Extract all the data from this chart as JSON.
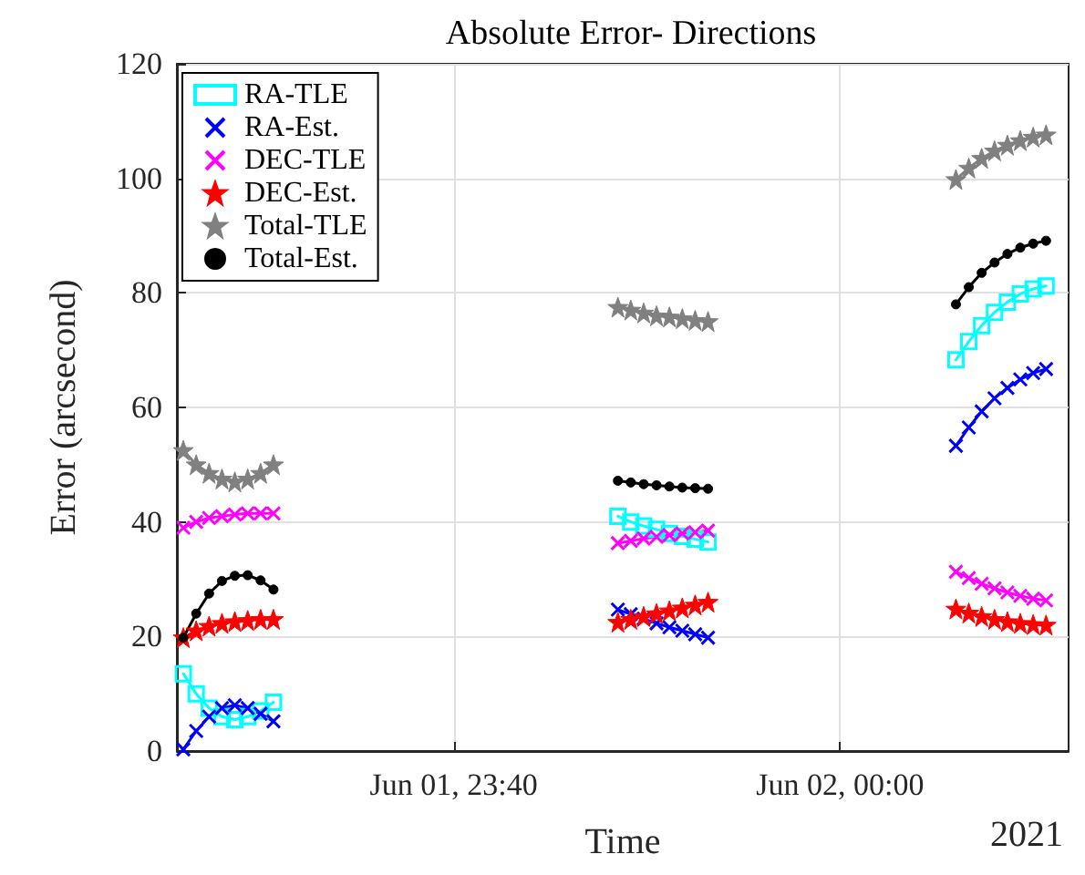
{
  "chart_data": {
    "type": "line",
    "title": "Absolute Error- Directions",
    "xlabel": "Time",
    "ylabel": "Error (arcsecond)",
    "annotations": [
      "2021"
    ],
    "x": [
      "2021-06-01T23:26:00",
      "2021-06-01T23:26:40",
      "2021-06-01T23:27:20",
      "2021-06-01T23:28:00",
      "2021-06-01T23:28:40",
      "2021-06-01T23:29:20",
      "2021-06-01T23:30:00",
      "2021-06-01T23:30:40",
      "2021-06-01T23:40:00",
      "2021-06-01T23:48:30",
      "2021-06-01T23:49:10",
      "2021-06-01T23:49:50",
      "2021-06-01T23:50:30",
      "2021-06-01T23:51:10",
      "2021-06-01T23:51:50",
      "2021-06-01T23:52:30",
      "2021-06-01T23:53:10",
      "2021-06-02T00:00:00",
      "2021-06-02T00:06:00",
      "2021-06-02T00:06:40",
      "2021-06-02T00:07:20",
      "2021-06-02T00:08:00",
      "2021-06-02T00:08:40",
      "2021-06-02T00:09:20",
      "2021-06-02T00:10:00",
      "2021-06-02T00:10:40"
    ],
    "series": [
      {
        "name": "RA-TLE",
        "color": "#00ffff",
        "marker": "square",
        "values": [
          13.5,
          10,
          7.5,
          6,
          5.5,
          6,
          7,
          8.5,
          null,
          41,
          40,
          39.3,
          38.7,
          38,
          37.5,
          37,
          36.5,
          null,
          68.3,
          71.5,
          74.3,
          76.6,
          78.4,
          79.8,
          80.7,
          81.2
        ]
      },
      {
        "name": "RA-Est.",
        "color": "#0000ff",
        "marker": "cross",
        "values": [
          0.3,
          3.5,
          6,
          7.5,
          8,
          7.5,
          6.5,
          5.2,
          null,
          24.7,
          23.9,
          23.1,
          22.3,
          21.6,
          21,
          20.4,
          19.8,
          null,
          53.3,
          56.5,
          59.3,
          61.6,
          63.4,
          64.9,
          66,
          66.7
        ]
      },
      {
        "name": "DEC-TLE",
        "color": "#ff00ff",
        "marker": "cross",
        "values": [
          39,
          40,
          40.7,
          41,
          41.3,
          41.5,
          41.5,
          41.5,
          null,
          36.3,
          36.7,
          37.1,
          37.4,
          37.7,
          38,
          38.2,
          38.5,
          null,
          31.3,
          30.2,
          29.2,
          28.4,
          27.7,
          27.1,
          26.6,
          26.3
        ]
      },
      {
        "name": "DEC-Est.",
        "color": "#ff0000",
        "marker": "star",
        "values": [
          19.8,
          21,
          21.8,
          22.3,
          22.6,
          22.8,
          23,
          23,
          null,
          22.5,
          23,
          23.5,
          24,
          24.5,
          25,
          25.5,
          26,
          null,
          24.8,
          24.1,
          23.5,
          23,
          22.6,
          22.3,
          22.1,
          22
        ]
      },
      {
        "name": "Total-TLE",
        "color": "#808080",
        "marker": "star",
        "values": [
          52.5,
          50,
          48.5,
          47.5,
          47,
          47.5,
          48.5,
          50,
          null,
          77.5,
          77,
          76.5,
          76,
          75.8,
          75.5,
          75.2,
          75,
          null,
          99.8,
          101.8,
          103.5,
          104.8,
          105.8,
          106.6,
          107.2,
          107.6
        ]
      },
      {
        "name": "Total-Est.",
        "color": "#000000",
        "marker": "circle",
        "values": [
          19.8,
          24,
          27.5,
          29.7,
          30.6,
          30.7,
          29.8,
          28.2,
          null,
          47.2,
          46.9,
          46.6,
          46.4,
          46.2,
          46,
          45.9,
          45.8,
          null,
          78,
          81,
          83.5,
          85.3,
          86.8,
          87.9,
          88.6,
          89.1
        ]
      }
    ],
    "xlim": [
      "2021-06-01T23:25:40",
      "2021-06-02T00:11:50"
    ],
    "xticks": [
      {
        "value": "2021-06-01T23:40",
        "label": "Jun 01, 23:40"
      },
      {
        "value": "2021-06-02T00:00",
        "label": "Jun 02, 00:00"
      }
    ],
    "ylim": [
      0,
      120
    ],
    "yticks": [
      0,
      20,
      40,
      60,
      80,
      100,
      120
    ],
    "grid": true,
    "legend": "top left",
    "line_style": "solid"
  }
}
